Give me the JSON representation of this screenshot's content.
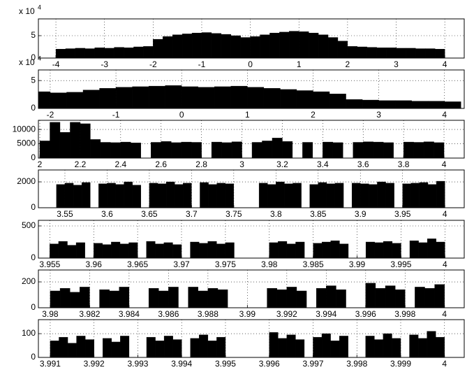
{
  "chart_data": [
    {
      "type": "histogram",
      "color": "#000000",
      "grid": true,
      "y_multiplier": {
        "base": "x 10",
        "exponent": "4"
      },
      "xlim": [
        -4.36,
        4.4
      ],
      "ylim": [
        0,
        8.75
      ],
      "xticks": [
        -4,
        -3,
        -2,
        -1,
        0,
        1,
        2,
        3,
        4
      ],
      "yticks": [
        0,
        5
      ],
      "bins": [
        -4,
        -3.8,
        -3.6,
        -3.4,
        -3.2,
        -3,
        -2.8,
        -2.6,
        -2.4,
        -2.2,
        -2,
        -1.8,
        -1.6,
        -1.4,
        -1.2,
        -1,
        -0.8,
        -0.6,
        -0.4,
        -0.2,
        0,
        0.2,
        0.4,
        0.6,
        0.8,
        1,
        1.2,
        1.4,
        1.6,
        1.8,
        2,
        2.2,
        2.4,
        2.6,
        2.8,
        3,
        3.2,
        3.4,
        3.6,
        3.8,
        4
      ],
      "counts": [
        2.0,
        2.1,
        2.2,
        2.1,
        2.3,
        2.2,
        2.4,
        2.3,
        2.5,
        2.6,
        4.2,
        4.8,
        5.2,
        5.4,
        5.6,
        5.7,
        5.5,
        5.3,
        5.0,
        4.6,
        4.8,
        5.2,
        5.6,
        5.8,
        6.0,
        5.9,
        5.6,
        5.2,
        4.6,
        3.8,
        2.6,
        2.5,
        2.4,
        2.3,
        2.3,
        2.2,
        2.2,
        2.1,
        2.1,
        2.0
      ]
    },
    {
      "type": "histogram",
      "color": "#000000",
      "grid": true,
      "y_multiplier": {
        "base": "x 10",
        "exponent": "4"
      },
      "xlim": [
        -2.18,
        4.3
      ],
      "ylim": [
        0,
        6.9
      ],
      "xticks": [
        -2,
        -1,
        0,
        1,
        2,
        3,
        4
      ],
      "yticks": [
        0,
        5
      ],
      "bins": [
        -2.25,
        -2,
        -1.75,
        -1.5,
        -1.25,
        -1,
        -0.75,
        -0.5,
        -0.25,
        0,
        0.25,
        0.5,
        0.75,
        1,
        1.25,
        1.5,
        1.75,
        2,
        2.25,
        2.5,
        2.75,
        3,
        3.25,
        3.5,
        3.75,
        4,
        4.25
      ],
      "counts": [
        3.0,
        2.8,
        2.9,
        3.3,
        3.6,
        3.8,
        3.9,
        4.0,
        4.1,
        3.9,
        3.8,
        3.9,
        4.0,
        3.8,
        3.6,
        3.4,
        3.2,
        3.0,
        2.6,
        1.6,
        1.5,
        1.4,
        1.4,
        1.3,
        1.3,
        1.2
      ]
    },
    {
      "type": "histogram",
      "color": "#000000",
      "grid": true,
      "xlim": [
        1.993,
        4.1
      ],
      "ylim": [
        0,
        13200
      ],
      "xticks": [
        2,
        2.2,
        2.4,
        2.6,
        2.8,
        3,
        3.2,
        3.4,
        3.6,
        3.8,
        4
      ],
      "yticks": [
        0,
        5000,
        10000
      ],
      "bins": [
        2,
        2.05,
        2.1,
        2.15,
        2.2,
        2.25,
        2.3,
        2.35,
        2.4,
        2.45,
        2.5,
        2.55,
        2.6,
        2.65,
        2.7,
        2.75,
        2.8,
        2.85,
        2.9,
        2.95,
        3,
        3.05,
        3.1,
        3.15,
        3.2,
        3.25,
        3.3,
        3.35,
        3.4,
        3.45,
        3.5,
        3.55,
        3.6,
        3.65,
        3.7,
        3.75,
        3.8,
        3.85,
        3.9,
        3.95,
        4
      ],
      "counts": [
        6000,
        12500,
        9000,
        12500,
        12000,
        6500,
        5500,
        5400,
        5600,
        5300,
        0,
        5500,
        5800,
        5400,
        5600,
        5500,
        0,
        5600,
        5400,
        5700,
        0,
        5500,
        6000,
        7000,
        5800,
        0,
        5500,
        0,
        5600,
        5400,
        0,
        5500,
        5700,
        5600,
        5400,
        0,
        5600,
        5500,
        5700,
        5400
      ]
    },
    {
      "type": "histogram",
      "color": "#000000",
      "grid": true,
      "xlim": [
        3.5186,
        4.023
      ],
      "ylim": [
        0,
        2920
      ],
      "xticks": [
        3.55,
        3.6,
        3.65,
        3.7,
        3.75,
        3.8,
        3.85,
        3.9,
        3.95,
        4
      ],
      "yticks": [
        0,
        2000
      ],
      "bins": [
        3.54,
        3.55,
        3.56,
        3.57,
        3.58,
        3.59,
        3.6,
        3.61,
        3.62,
        3.63,
        3.64,
        3.65,
        3.66,
        3.67,
        3.68,
        3.69,
        3.7,
        3.71,
        3.72,
        3.73,
        3.74,
        3.75,
        3.76,
        3.77,
        3.78,
        3.79,
        3.8,
        3.81,
        3.82,
        3.83,
        3.84,
        3.85,
        3.86,
        3.87,
        3.88,
        3.89,
        3.9,
        3.91,
        3.92,
        3.93,
        3.94,
        3.95,
        3.96,
        3.97,
        3.98,
        3.99,
        4
      ],
      "counts": [
        1800,
        1900,
        1750,
        1950,
        0,
        1850,
        1900,
        1800,
        2000,
        1750,
        0,
        1900,
        1850,
        2000,
        1800,
        1900,
        0,
        1950,
        1800,
        1900,
        1850,
        0,
        0,
        0,
        1900,
        1800,
        2000,
        1850,
        1900,
        0,
        1800,
        1950,
        1850,
        1900,
        0,
        1900,
        1850,
        1800,
        2000,
        1900,
        0,
        1850,
        1900,
        1950,
        1800,
        2050
      ]
    },
    {
      "type": "histogram",
      "color": "#000000",
      "grid": true,
      "xlim": [
        3.9537,
        4.0022
      ],
      "ylim": [
        0,
        587
      ],
      "xticks": [
        3.955,
        3.96,
        3.965,
        3.97,
        3.975,
        3.98,
        3.985,
        3.99,
        3.995,
        4
      ],
      "yticks": [
        0,
        500
      ],
      "bins": [
        3.955,
        3.956,
        3.957,
        3.958,
        3.959,
        3.96,
        3.961,
        3.962,
        3.963,
        3.964,
        3.965,
        3.966,
        3.967,
        3.968,
        3.969,
        3.97,
        3.971,
        3.972,
        3.973,
        3.974,
        3.975,
        3.976,
        3.977,
        3.978,
        3.979,
        3.98,
        3.981,
        3.982,
        3.983,
        3.984,
        3.985,
        3.986,
        3.987,
        3.988,
        3.989,
        3.99,
        3.991,
        3.992,
        3.993,
        3.994,
        3.995,
        3.996,
        3.997,
        3.998,
        3.999,
        4
      ],
      "counts": [
        220,
        260,
        200,
        240,
        0,
        230,
        210,
        250,
        220,
        240,
        0,
        260,
        220,
        240,
        210,
        0,
        250,
        230,
        260,
        220,
        240,
        0,
        0,
        0,
        0,
        240,
        260,
        220,
        250,
        0,
        230,
        250,
        270,
        220,
        0,
        0,
        250,
        240,
        260,
        230,
        0,
        270,
        240,
        300,
        250
      ]
    },
    {
      "type": "histogram",
      "color": "#000000",
      "grid": true,
      "xlim": [
        3.9794,
        4.001
      ],
      "ylim": [
        0,
        292
      ],
      "xticks": [
        3.98,
        3.982,
        3.984,
        3.986,
        3.988,
        3.99,
        3.992,
        3.994,
        3.996,
        3.998,
        4
      ],
      "yticks": [
        0,
        200
      ],
      "bins": [
        3.98,
        3.9805,
        3.981,
        3.9815,
        3.982,
        3.9825,
        3.983,
        3.9835,
        3.984,
        3.9845,
        3.985,
        3.9855,
        3.986,
        3.9865,
        3.987,
        3.9875,
        3.988,
        3.9885,
        3.989,
        3.9895,
        3.99,
        3.9905,
        3.991,
        3.9915,
        3.992,
        3.9925,
        3.993,
        3.9935,
        3.994,
        3.9945,
        3.995,
        3.9955,
        3.996,
        3.9965,
        3.997,
        3.9975,
        3.998,
        3.9985,
        3.999,
        3.9995,
        4
      ],
      "counts": [
        130,
        150,
        120,
        160,
        0,
        140,
        130,
        160,
        0,
        0,
        150,
        130,
        160,
        0,
        160,
        130,
        150,
        140,
        0,
        0,
        0,
        0,
        150,
        140,
        160,
        130,
        0,
        150,
        170,
        140,
        0,
        0,
        190,
        150,
        170,
        140,
        0,
        160,
        150,
        180
      ]
    },
    {
      "type": "histogram",
      "color": "#000000",
      "grid": true,
      "xlim": [
        3.99073,
        4.00045
      ],
      "ylim": [
        0,
        159
      ],
      "xticks": [
        3.991,
        3.992,
        3.993,
        3.994,
        3.995,
        3.996,
        3.997,
        3.998,
        3.999,
        4
      ],
      "yticks": [
        0,
        100
      ],
      "bins": [
        3.991,
        3.9912,
        3.9914,
        3.9916,
        3.9918,
        3.992,
        3.9922,
        3.9924,
        3.9926,
        3.9928,
        3.993,
        3.9932,
        3.9934,
        3.9936,
        3.9938,
        3.994,
        3.9942,
        3.9944,
        3.9946,
        3.9948,
        3.995,
        3.9952,
        3.9954,
        3.9956,
        3.9958,
        3.996,
        3.9962,
        3.9964,
        3.9966,
        3.9968,
        3.997,
        3.9972,
        3.9974,
        3.9976,
        3.9978,
        3.998,
        3.9982,
        3.9984,
        3.9986,
        3.9988,
        3.999,
        3.9992,
        3.9994,
        3.9996,
        3.9998,
        4
      ],
      "counts": [
        70,
        85,
        60,
        90,
        75,
        0,
        80,
        65,
        90,
        0,
        0,
        85,
        70,
        90,
        75,
        0,
        80,
        95,
        70,
        85,
        0,
        0,
        0,
        0,
        0,
        105,
        80,
        95,
        75,
        0,
        85,
        100,
        70,
        90,
        0,
        0,
        90,
        75,
        100,
        80,
        0,
        95,
        80,
        110,
        85
      ]
    }
  ]
}
